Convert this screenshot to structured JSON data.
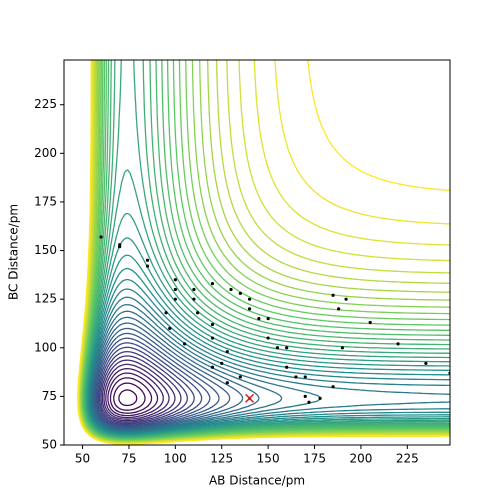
{
  "chart_data": {
    "type": "scatter",
    "xlabel": "AB Distance/pm",
    "ylabel": "BC Distance/pm",
    "xlim": [
      40,
      248
    ],
    "ylim": [
      50,
      248
    ],
    "xticks": [
      50,
      75,
      100,
      125,
      150,
      175,
      200,
      225
    ],
    "yticks": [
      50,
      75,
      100,
      125,
      150,
      175,
      200,
      225
    ],
    "series": [
      {
        "name": "trajectory",
        "color": "#000000",
        "x": [
          140,
          135,
          128,
          120,
          110,
          100,
          85,
          70,
          60,
          70,
          85,
          100,
          112,
          120,
          125,
          128,
          120,
          105,
          97,
          95,
          100,
          110,
          120,
          130,
          140,
          150,
          160,
          170,
          172,
          165,
          155,
          145,
          135,
          140,
          150,
          160,
          170,
          178,
          185,
          190,
          188,
          185,
          192,
          205,
          220,
          235,
          248
        ],
        "y": [
          74,
          85,
          98,
          112,
          125,
          135,
          145,
          153,
          157,
          152,
          142,
          130,
          118,
          105,
          92,
          82,
          90,
          102,
          110,
          118,
          125,
          130,
          133,
          130,
          120,
          105,
          90,
          75,
          72,
          85,
          100,
          115,
          128,
          125,
          115,
          100,
          85,
          74,
          80,
          100,
          120,
          127,
          125,
          113,
          102,
          92,
          87
        ]
      },
      {
        "name": "start",
        "color": "#d62728",
        "x": [
          140
        ],
        "y": [
          74
        ]
      }
    ]
  }
}
